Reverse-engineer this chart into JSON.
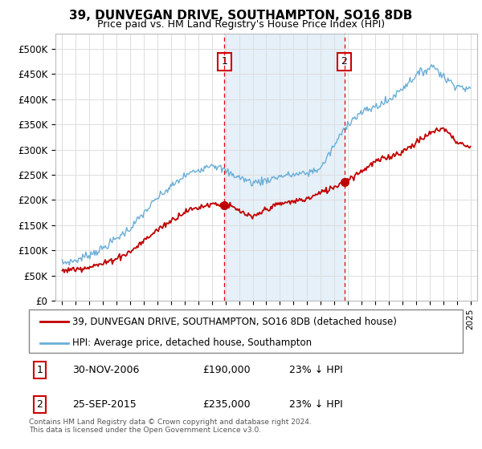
{
  "title": "39, DUNVEGAN DRIVE, SOUTHAMPTON, SO16 8DB",
  "subtitle": "Price paid vs. HM Land Registry's House Price Index (HPI)",
  "ylabel_ticks": [
    "£0",
    "£50K",
    "£100K",
    "£150K",
    "£200K",
    "£250K",
    "£300K",
    "£350K",
    "£400K",
    "£450K",
    "£500K"
  ],
  "ytick_values": [
    0,
    50000,
    100000,
    150000,
    200000,
    250000,
    300000,
    350000,
    400000,
    450000,
    500000
  ],
  "xlim_start": 1994.5,
  "xlim_end": 2025.5,
  "ylim_min": 0,
  "ylim_max": 530000,
  "sale1_date": 2006.917,
  "sale1_price": 190000,
  "sale1_label": "1",
  "sale2_date": 2015.729,
  "sale2_price": 235000,
  "sale2_label": "2",
  "legend_line1": "39, DUNVEGAN DRIVE, SOUTHAMPTON, SO16 8DB (detached house)",
  "legend_line2": "HPI: Average price, detached house, Southampton",
  "table_row1": [
    "1",
    "30-NOV-2006",
    "£190,000",
    "23% ↓ HPI"
  ],
  "table_row2": [
    "2",
    "25-SEP-2015",
    "£235,000",
    "23% ↓ HPI"
  ],
  "footer": "Contains HM Land Registry data © Crown copyright and database right 2024.\nThis data is licensed under the Open Government Licence v3.0.",
  "hpi_color": "#6aaed6",
  "price_color": "#c00000",
  "sale_marker_color": "#c00000",
  "vline_color": "#e8000a",
  "bg_shade_color": "#daeaf7",
  "grid_color": "#dddddd",
  "box_edge_color": "#cc0000",
  "legend_edge_color": "#888888"
}
